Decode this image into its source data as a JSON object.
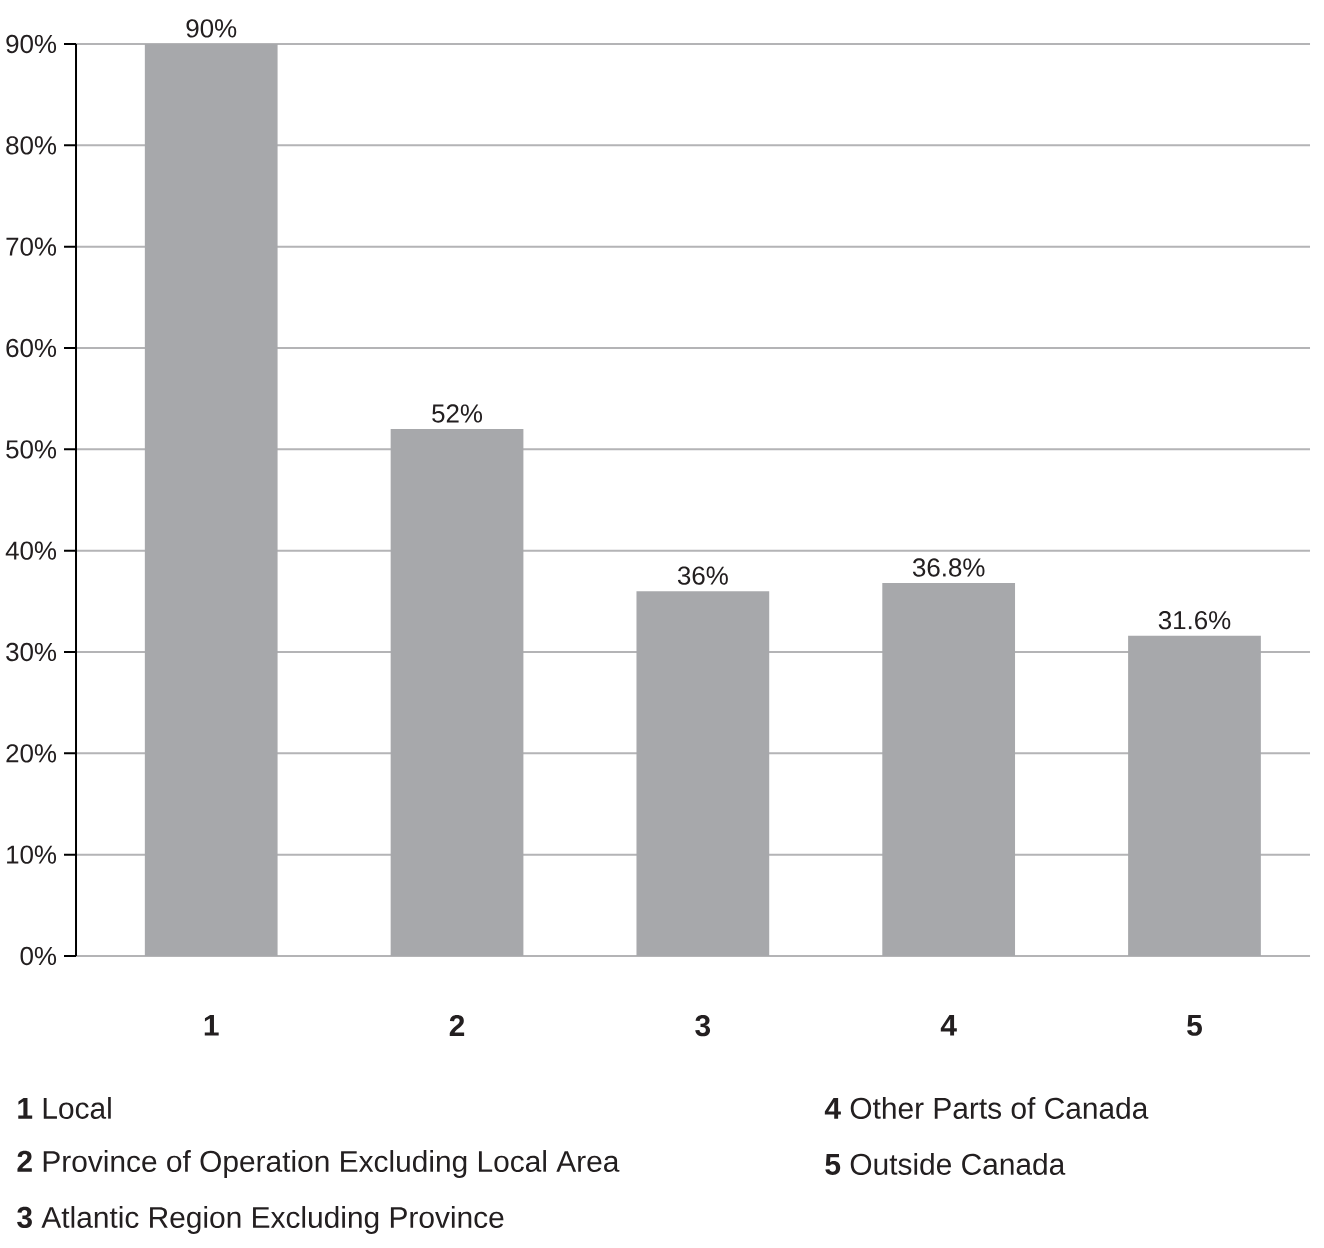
{
  "chart_data": {
    "type": "bar",
    "categories": [
      "1",
      "2",
      "3",
      "4",
      "5"
    ],
    "values": [
      90,
      52,
      36,
      36.8,
      31.6
    ],
    "value_labels": [
      "90%",
      "52%",
      "36%",
      "36.8%",
      "31.6%"
    ],
    "color": "#a7a8ab",
    "ylim": [
      0,
      90
    ],
    "yticks": [
      {
        "value": 0,
        "label": "0%"
      },
      {
        "value": 10,
        "label": "10%"
      },
      {
        "value": 20,
        "label": "20%"
      },
      {
        "value": 30,
        "label": "30%"
      },
      {
        "value": 40,
        "label": "40%"
      },
      {
        "value": 50,
        "label": "50%"
      },
      {
        "value": 60,
        "label": "60%"
      },
      {
        "value": 70,
        "label": "70%"
      },
      {
        "value": 80,
        "label": "80%"
      },
      {
        "value": 90,
        "label": "90%"
      }
    ],
    "grid": "y",
    "annotations": [
      "**1** Local",
      "**2** Province of Operation Excluding Local Area",
      "**3** Atlantic Region Excluding Province",
      "**4** Other Parts of Canada",
      "**5** Outside Canada"
    ]
  }
}
